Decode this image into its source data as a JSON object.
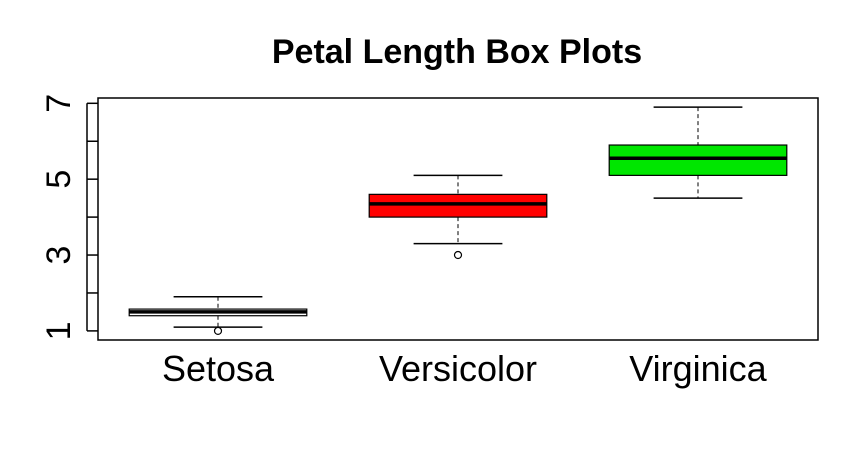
{
  "chart_data": {
    "type": "boxplot",
    "title": "Petal Length Box Plots",
    "xlabel": "",
    "ylabel": "",
    "ylim": [
      0.76,
      7.14
    ],
    "yticks": [
      1,
      2,
      3,
      4,
      5,
      6,
      7
    ],
    "ytick_labels": [
      "1",
      "",
      "3",
      "",
      "5",
      "",
      "7"
    ],
    "categories": [
      "Setosa",
      "Versicolor",
      "Virginica"
    ],
    "boxes": [
      {
        "name": "Setosa",
        "color": "#ffffff",
        "whisker_low": 1.1,
        "q1": 1.4,
        "median": 1.5,
        "q3": 1.575,
        "whisker_high": 1.9,
        "outliers": [
          1.0
        ]
      },
      {
        "name": "Versicolor",
        "color": "#ff0000",
        "whisker_low": 3.3,
        "q1": 4.0,
        "median": 4.35,
        "q3": 4.6,
        "whisker_high": 5.1,
        "outliers": [
          3.0
        ]
      },
      {
        "name": "Virginica",
        "color": "#00e600",
        "whisker_low": 4.5,
        "q1": 5.1,
        "median": 5.55,
        "q3": 5.9,
        "whisker_high": 6.9,
        "outliers": []
      }
    ],
    "grid": false,
    "legend": "none"
  }
}
